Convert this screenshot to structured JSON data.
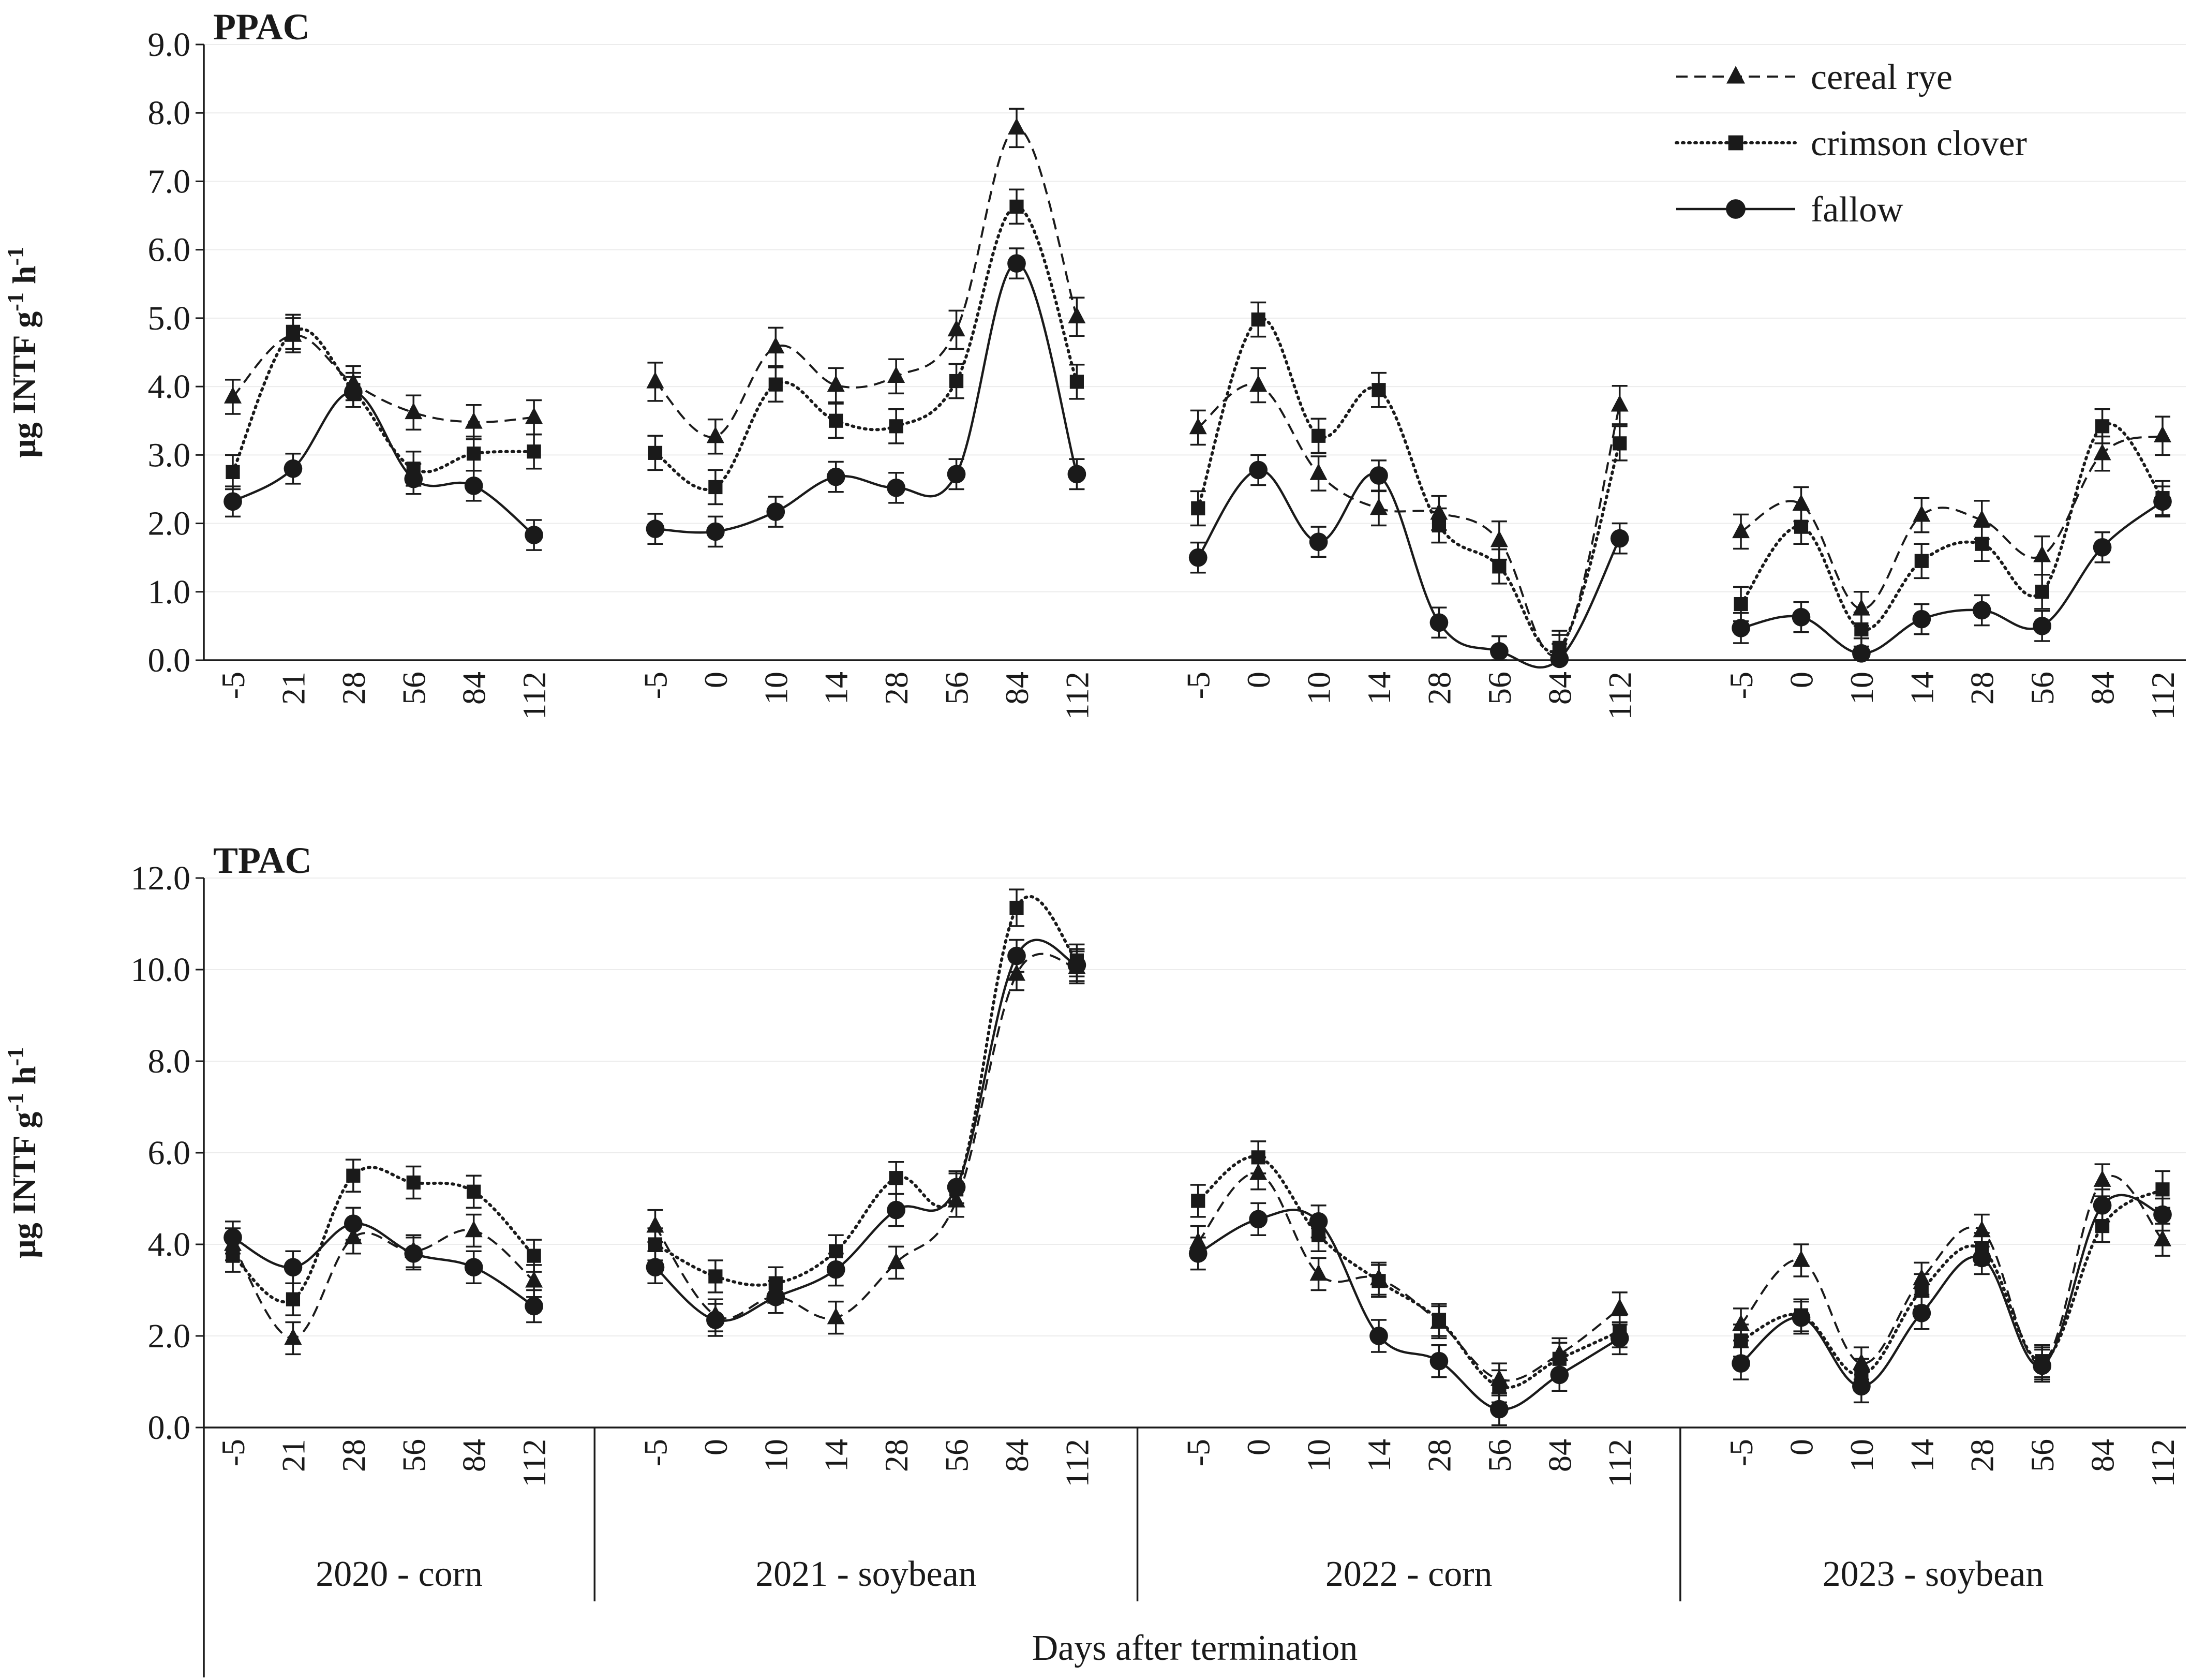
{
  "chart_data": {
    "type": "line",
    "xlabel": "Days after termination",
    "ylabel": "µg INTF g-1 h-1",
    "ylabel_parts": {
      "base": "µg INTF g",
      "exp1": "-1",
      "mid": " h",
      "exp2": "-1"
    },
    "groups": [
      {
        "label": "2020 - corn",
        "days": [
          "-5",
          "21",
          "28",
          "56",
          "84",
          "112"
        ]
      },
      {
        "label": "2021 - soybean",
        "days": [
          "-5",
          "0",
          "10",
          "14",
          "28",
          "56",
          "84",
          "112"
        ]
      },
      {
        "label": "2022 - corn",
        "days": [
          "-5",
          "0",
          "10",
          "14",
          "28",
          "56",
          "84",
          "112"
        ]
      },
      {
        "label": "2023 - soybean",
        "days": [
          "-5",
          "0",
          "10",
          "14",
          "28",
          "56",
          "84",
          "112"
        ]
      }
    ],
    "legend": {
      "position": "top-right",
      "entries": [
        "cereal rye",
        "crimson clover",
        "fallow"
      ]
    },
    "series_styles": [
      {
        "name": "cereal rye",
        "marker": "triangle",
        "line": "dashed"
      },
      {
        "name": "crimson clover",
        "marker": "square",
        "line": "dotted"
      },
      {
        "name": "fallow",
        "marker": "circle",
        "line": "solid"
      }
    ],
    "panels": [
      {
        "title": "PPAC",
        "ylim": [
          0,
          9
        ],
        "yticks": [
          "0.0",
          "1.0",
          "2.0",
          "3.0",
          "4.0",
          "5.0",
          "6.0",
          "7.0",
          "8.0",
          "9.0"
        ],
        "series": [
          {
            "name": "cereal rye",
            "values": [
              [
                3.85,
                4.75,
                4.05,
                3.62,
                3.48,
                3.55
              ],
              [
                4.07,
                3.27,
                4.58,
                4.02,
                4.15,
                4.83,
                7.78,
                5.02
              ],
              [
                3.4,
                4.02,
                2.73,
                2.22,
                2.15,
                1.75,
                0.12,
                3.73
              ],
              [
                1.88,
                2.28,
                0.75,
                2.12,
                2.05,
                1.53,
                3.02,
                3.28
              ]
            ],
            "errors": [
              [
                0.25,
                0.25,
                0.25,
                0.25,
                0.25,
                0.25
              ],
              [
                0.28,
                0.25,
                0.28,
                0.25,
                0.25,
                0.28,
                0.28,
                0.28
              ],
              [
                0.25,
                0.25,
                0.25,
                0.25,
                0.25,
                0.28,
                0.25,
                0.28
              ],
              [
                0.25,
                0.25,
                0.25,
                0.25,
                0.28,
                0.28,
                0.25,
                0.28
              ]
            ]
          },
          {
            "name": "crimson clover",
            "values": [
              [
                2.75,
                4.8,
                3.95,
                2.8,
                3.02,
                3.05
              ],
              [
                3.03,
                2.53,
                4.03,
                3.5,
                3.42,
                4.08,
                6.63,
                4.07
              ],
              [
                2.22,
                4.98,
                3.28,
                3.95,
                1.97,
                1.37,
                0.18,
                3.17
              ],
              [
                0.82,
                1.95,
                0.45,
                1.45,
                1.7,
                1.0,
                3.42,
                2.37
              ]
            ],
            "errors": [
              [
                0.25,
                0.25,
                0.25,
                0.25,
                0.25,
                0.25
              ],
              [
                0.25,
                0.25,
                0.25,
                0.25,
                0.25,
                0.25,
                0.25,
                0.25
              ],
              [
                0.25,
                0.25,
                0.25,
                0.25,
                0.25,
                0.25,
                0.25,
                0.25
              ],
              [
                0.25,
                0.25,
                0.25,
                0.25,
                0.25,
                0.25,
                0.25,
                0.25
              ]
            ]
          },
          {
            "name": "fallow",
            "values": [
              [
                2.32,
                2.8,
                3.92,
                2.65,
                2.55,
                1.83
              ],
              [
                1.92,
                1.88,
                2.17,
                2.68,
                2.52,
                2.72,
                5.8,
                2.72
              ],
              [
                1.5,
                2.78,
                1.73,
                2.7,
                0.55,
                0.13,
                0.02,
                1.78
              ],
              [
                0.47,
                0.63,
                0.1,
                0.6,
                0.73,
                0.5,
                1.65,
                2.32
              ]
            ],
            "errors": [
              [
                0.22,
                0.22,
                0.22,
                0.22,
                0.22,
                0.22
              ],
              [
                0.22,
                0.22,
                0.22,
                0.22,
                0.22,
                0.22,
                0.22,
                0.22
              ],
              [
                0.22,
                0.22,
                0.22,
                0.22,
                0.22,
                0.22,
                0.22,
                0.22
              ],
              [
                0.22,
                0.22,
                0.22,
                0.22,
                0.22,
                0.22,
                0.22,
                0.22
              ]
            ]
          }
        ]
      },
      {
        "title": "TPAC",
        "ylim": [
          0,
          12
        ],
        "yticks": [
          "0.0",
          "2.0",
          "4.0",
          "6.0",
          "8.0",
          "10.0",
          "12.0"
        ],
        "series": [
          {
            "name": "cereal rye",
            "values": [
              [
                4.0,
                1.95,
                4.15,
                3.85,
                4.3,
                3.2
              ],
              [
                4.4,
                2.45,
                2.85,
                2.4,
                3.6,
                4.95,
                9.9,
                10.05
              ],
              [
                4.05,
                5.55,
                3.35,
                3.25,
                2.3,
                1.05,
                1.6,
                2.6
              ],
              [
                2.25,
                3.65,
                1.4,
                3.25,
                4.3,
                1.4,
                5.4,
                4.1
              ]
            ],
            "errors": [
              [
                0.35,
                0.35,
                0.35,
                0.35,
                0.35,
                0.35
              ],
              [
                0.35,
                0.35,
                0.35,
                0.35,
                0.35,
                0.35,
                0.35,
                0.35
              ],
              [
                0.35,
                0.35,
                0.35,
                0.35,
                0.35,
                0.35,
                0.35,
                0.35
              ],
              [
                0.35,
                0.35,
                0.35,
                0.35,
                0.35,
                0.35,
                0.35,
                0.35
              ]
            ]
          },
          {
            "name": "crimson clover",
            "values": [
              [
                3.75,
                2.8,
                5.5,
                5.35,
                5.15,
                3.75
              ],
              [
                4.0,
                3.3,
                3.15,
                3.85,
                5.45,
                5.2,
                11.35,
                10.2
              ],
              [
                4.95,
                5.9,
                4.2,
                3.2,
                2.35,
                0.9,
                1.5,
                2.1
              ],
              [
                1.9,
                2.45,
                1.15,
                3.0,
                3.9,
                1.45,
                4.4,
                5.2
              ]
            ],
            "errors": [
              [
                0.35,
                0.35,
                0.35,
                0.35,
                0.35,
                0.35
              ],
              [
                0.35,
                0.35,
                0.35,
                0.35,
                0.35,
                0.35,
                0.4,
                0.35
              ],
              [
                0.35,
                0.35,
                0.35,
                0.35,
                0.35,
                0.35,
                0.35,
                0.35
              ],
              [
                0.35,
                0.35,
                0.35,
                0.35,
                0.35,
                0.35,
                0.35,
                0.4
              ]
            ]
          },
          {
            "name": "fallow",
            "values": [
              [
                4.15,
                3.5,
                4.45,
                3.8,
                3.5,
                2.65
              ],
              [
                3.5,
                2.35,
                2.85,
                3.45,
                4.75,
                5.25,
                10.3,
                10.1
              ],
              [
                3.8,
                4.55,
                4.5,
                2.0,
                1.45,
                0.4,
                1.15,
                1.95
              ],
              [
                1.4,
                2.4,
                0.9,
                2.5,
                3.7,
                1.35,
                4.85,
                4.65
              ]
            ],
            "errors": [
              [
                0.35,
                0.35,
                0.35,
                0.35,
                0.35,
                0.35
              ],
              [
                0.35,
                0.35,
                0.35,
                0.35,
                0.35,
                0.35,
                0.35,
                0.35
              ],
              [
                0.35,
                0.35,
                0.35,
                0.35,
                0.35,
                0.35,
                0.35,
                0.35
              ],
              [
                0.35,
                0.35,
                0.35,
                0.35,
                0.35,
                0.35,
                0.35,
                0.35
              ]
            ]
          }
        ]
      }
    ]
  }
}
